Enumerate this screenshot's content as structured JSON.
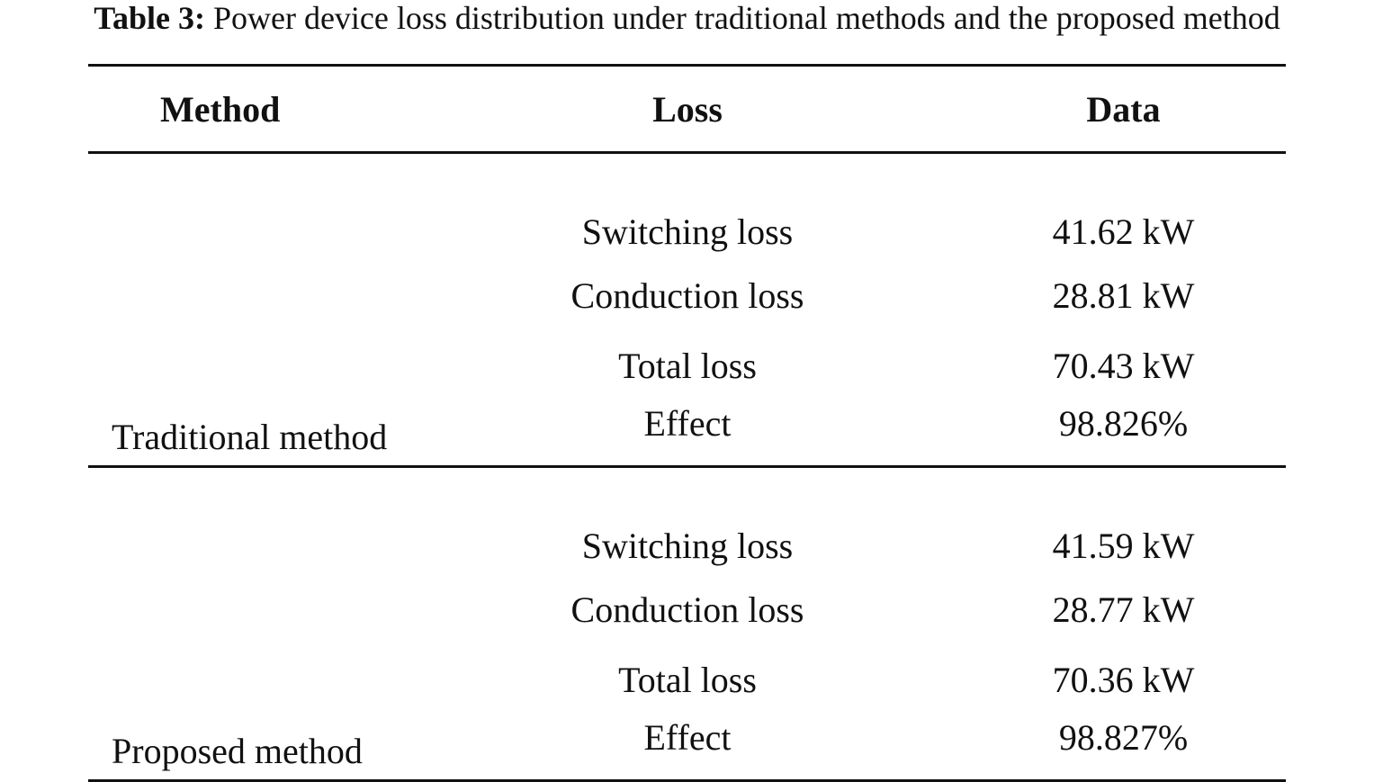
{
  "caption": {
    "label": "Table 3:",
    "text": "Power device loss distribution under traditional methods and the proposed method"
  },
  "table": {
    "headers": [
      "Method",
      "Loss",
      "Data"
    ],
    "groups": [
      {
        "method": "Traditional method",
        "rows": [
          {
            "loss": "Switching loss",
            "data": "41.62 kW"
          },
          {
            "loss": "Conduction loss",
            "data": "28.81 kW"
          },
          {
            "loss": "Total loss",
            "data": "70.43 kW"
          },
          {
            "loss": "Effect",
            "data": "98.826%"
          }
        ]
      },
      {
        "method": "Proposed method",
        "rows": [
          {
            "loss": "Switching loss",
            "data": "41.59 kW"
          },
          {
            "loss": "Conduction loss",
            "data": "28.77 kW"
          },
          {
            "loss": "Total loss",
            "data": "70.36 kW"
          },
          {
            "loss": "Effect",
            "data": "98.827%"
          }
        ]
      }
    ]
  }
}
